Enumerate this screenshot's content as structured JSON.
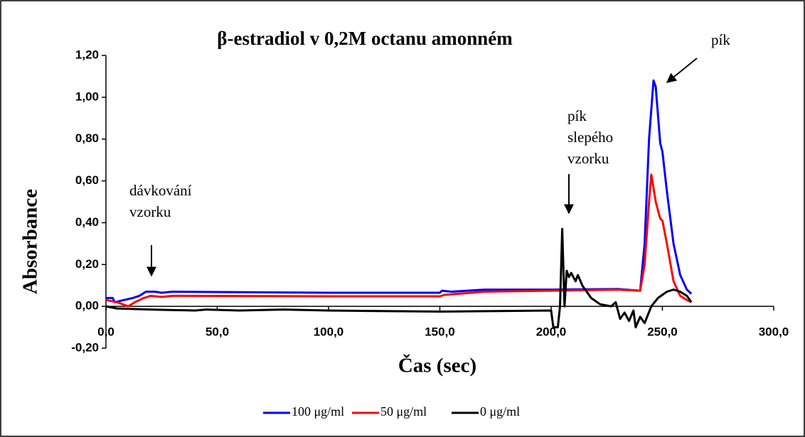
{
  "chart_data": {
    "type": "line",
    "title": "β-estradiol v 0,2M octanu amonném",
    "x_label": "Čas (sec)",
    "y_label": "Absorbance",
    "xlim": [
      0,
      300
    ],
    "xticks": [
      {
        "value": 0,
        "label": "0,0"
      },
      {
        "value": 50,
        "label": "50,0"
      },
      {
        "value": 100,
        "label": "100,0"
      },
      {
        "value": 150,
        "label": "150,0"
      },
      {
        "value": 200,
        "label": "200,0"
      },
      {
        "value": 250,
        "label": "250,0"
      },
      {
        "value": 300,
        "label": "300,0"
      }
    ],
    "ylim": [
      -0.2,
      1.2
    ],
    "yticks": [
      {
        "value": -0.2,
        "label": "-0,20"
      },
      {
        "value": 0,
        "label": "0,00"
      },
      {
        "value": 0.2,
        "label": "0,20"
      },
      {
        "value": 0.4,
        "label": "0,40"
      },
      {
        "value": 0.6,
        "label": "0,60"
      },
      {
        "value": 0.8,
        "label": "0,80"
      },
      {
        "value": 1.0,
        "label": "1,00"
      },
      {
        "value": 1.2,
        "label": "1,20"
      }
    ],
    "grid": false,
    "legend": "bottom",
    "annotations": [
      {
        "lines": [
          "dávkování",
          "vzorku"
        ]
      },
      {
        "lines": [
          "pík",
          "slepého",
          "vzorku"
        ]
      },
      {
        "lines": [
          "pík"
        ]
      }
    ],
    "series": [
      {
        "name": "100 μg/ml",
        "color": "#0000ff",
        "x": [
          0,
          3,
          4,
          8,
          12,
          15,
          18,
          22,
          25,
          30,
          100,
          150,
          151,
          155,
          170,
          200,
          230,
          240,
          242,
          244,
          246,
          247,
          249,
          250,
          252,
          255,
          258,
          261,
          263
        ],
        "values": [
          0.04,
          0.04,
          0.02,
          0.03,
          0.04,
          0.05,
          0.07,
          0.07,
          0.065,
          0.07,
          0.065,
          0.065,
          0.075,
          0.07,
          0.08,
          0.08,
          0.083,
          0.075,
          0.3,
          0.8,
          1.08,
          1.05,
          0.78,
          0.74,
          0.55,
          0.3,
          0.15,
          0.08,
          0.06
        ]
      },
      {
        "name": "50  μg/ml",
        "color": "#ff0000",
        "x": [
          0,
          5,
          10,
          13,
          17,
          20,
          25,
          30,
          100,
          150,
          152,
          170,
          200,
          230,
          240,
          242,
          244,
          245,
          247,
          249,
          250,
          252,
          255,
          258,
          261,
          263
        ],
        "values": [
          0.03,
          0.02,
          0.0,
          0.02,
          0.04,
          0.05,
          0.045,
          0.05,
          0.048,
          0.048,
          0.055,
          0.07,
          0.075,
          0.08,
          0.075,
          0.2,
          0.5,
          0.63,
          0.5,
          0.42,
          0.41,
          0.3,
          0.12,
          0.05,
          0.03,
          0.02
        ]
      },
      {
        "name": "0  μg/ml",
        "color": "#000000",
        "x": [
          0,
          5,
          20,
          40,
          45,
          60,
          80,
          100,
          150,
          200,
          201,
          203,
          204,
          205,
          206,
          207,
          208,
          209,
          211,
          212,
          214,
          218,
          222,
          227,
          229,
          231,
          233,
          235,
          237,
          238,
          240,
          242,
          245,
          248,
          252,
          255,
          258,
          261,
          263
        ],
        "values": [
          0.0,
          -0.01,
          -0.015,
          -0.02,
          -0.015,
          -0.02,
          -0.015,
          -0.02,
          -0.025,
          -0.02,
          -0.1,
          -0.1,
          0.0,
          0.37,
          0.0,
          0.17,
          0.14,
          0.16,
          0.12,
          0.15,
          0.1,
          0.04,
          0.01,
          0.0,
          0.02,
          -0.06,
          -0.03,
          -0.07,
          -0.02,
          -0.1,
          -0.05,
          -0.08,
          0.0,
          0.04,
          0.07,
          0.08,
          0.07,
          0.05,
          0.02
        ]
      }
    ]
  }
}
